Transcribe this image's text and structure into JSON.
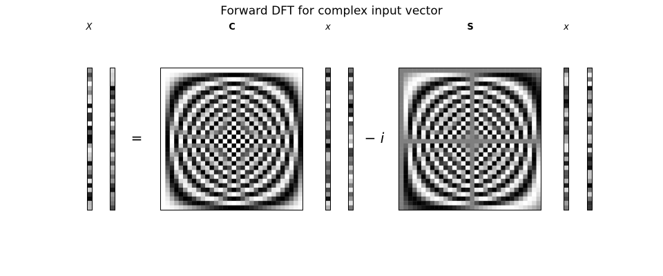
{
  "title": "Forward DFT for complex input vector",
  "labels": {
    "X": "X",
    "C": "C",
    "x1": "x",
    "S": "S",
    "x2": "x"
  },
  "operators": {
    "equals": "=",
    "minus_i": "− i"
  },
  "dft": {
    "n": 32,
    "cmap": "gray"
  }
}
